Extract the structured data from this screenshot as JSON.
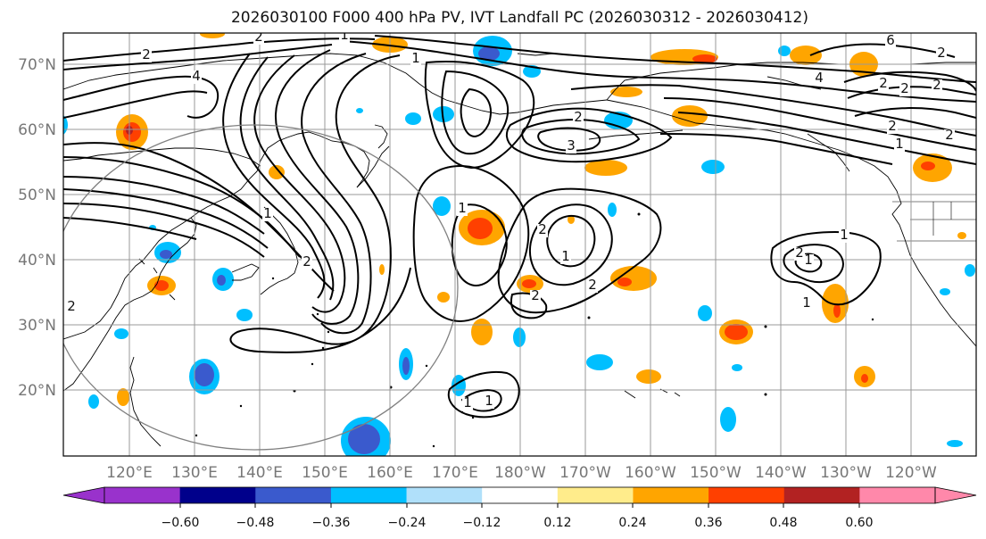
{
  "title": "2026030100 F000 400 hPa PV, IVT Landfall PC (2026030312 - 2026030412)",
  "lat_ticks": [
    "70°N",
    "60°N",
    "50°N",
    "40°N",
    "30°N",
    "20°N"
  ],
  "lon_ticks": [
    "120°E",
    "130°E",
    "140°E",
    "150°E",
    "160°E",
    "170°E",
    "180°W",
    "170°W",
    "160°W",
    "150°W",
    "140°W",
    "130°W",
    "120°W"
  ],
  "colorbar": {
    "ticks": [
      "−0.60",
      "−0.48",
      "−0.36",
      "−0.24",
      "−0.12",
      "0.12",
      "0.24",
      "0.36",
      "0.48",
      "0.60"
    ],
    "colors": [
      "#9932cc",
      "#00008b",
      "#3a5acd",
      "#00bfff",
      "#b0e0fa",
      "#ffffff",
      "#ffec8b",
      "#ffa500",
      "#ff4000",
      "#b22222",
      "#ff88aa"
    ]
  },
  "contour_labels": [
    "2",
    "4",
    "1",
    "2",
    "1",
    "6",
    "2",
    "1",
    "2",
    "2",
    "3",
    "2",
    "4",
    "2",
    "2",
    "2",
    "1",
    "2",
    "1",
    "2",
    "2",
    "1",
    "2",
    "1",
    "1",
    "2",
    "1",
    "1",
    "1",
    "2"
  ]
}
